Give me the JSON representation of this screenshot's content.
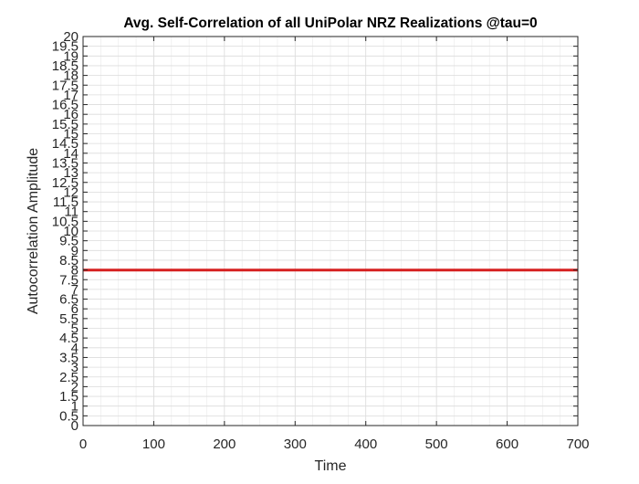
{
  "chart_data": {
    "type": "line",
    "title": "Avg. Self-Correlation of all UniPolar NRZ Realizations @tau=0",
    "xlabel": "Time",
    "ylabel": "Autocorrelation Amplitude",
    "xlim": [
      0,
      700
    ],
    "ylim": [
      0,
      20
    ],
    "x_ticks": [
      0,
      100,
      200,
      300,
      400,
      500,
      600,
      700
    ],
    "x_tick_labels": [
      "0",
      "100",
      "200",
      "300",
      "400",
      "500",
      "600",
      "700"
    ],
    "y_ticks": [
      0,
      0.5,
      1,
      1.5,
      2,
      2.5,
      3,
      3.5,
      4,
      4.5,
      5,
      5.5,
      6,
      6.5,
      7,
      7.5,
      8,
      8.5,
      9,
      9.5,
      10,
      10.5,
      11,
      11.5,
      12,
      12.5,
      13,
      13.5,
      14,
      14.5,
      15,
      15.5,
      16,
      16.5,
      17,
      17.5,
      18,
      18.5,
      19,
      19.5,
      20
    ],
    "y_tick_labels": [
      "0",
      "0.5",
      "1",
      "1.5",
      "2",
      "2.5",
      "3",
      "3.5",
      "4",
      "4.5",
      "5",
      "5.5",
      "6",
      "6.5",
      "7",
      "7.5",
      "8",
      "8.5",
      "9",
      "9.5",
      "10",
      "10.5",
      "11",
      "11.5",
      "12",
      "12.5",
      "13",
      "13.5",
      "14",
      "14.5",
      "15",
      "15.5",
      "16",
      "16.5",
      "17",
      "17.5",
      "18",
      "18.5",
      "19",
      "19.5",
      "20"
    ],
    "grid": true,
    "minor_grid": true,
    "box": true,
    "series": [
      {
        "color": "#d62020",
        "x": [
          0,
          700
        ],
        "y": [
          7.99,
          7.99
        ]
      }
    ]
  }
}
